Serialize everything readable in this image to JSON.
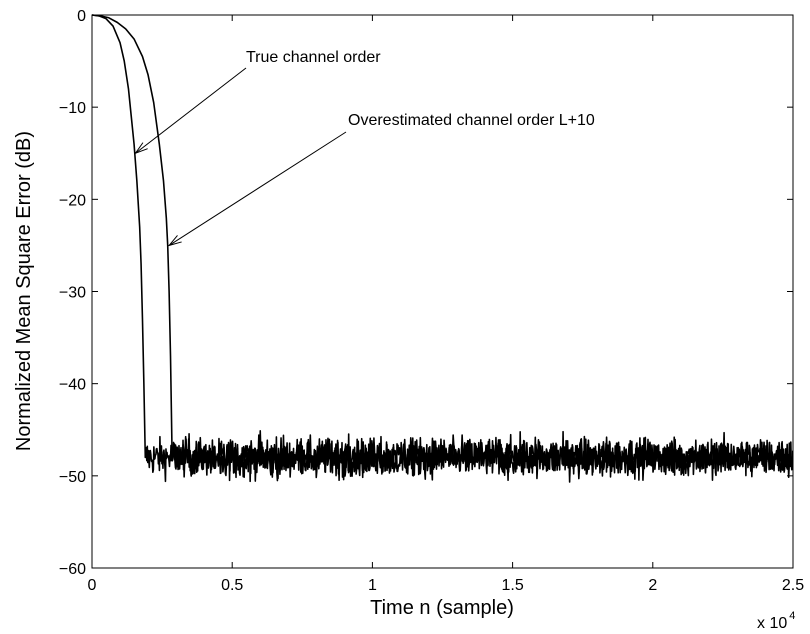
{
  "chart_data": {
    "type": "line",
    "title": "",
    "xlabel": "Time n (sample)",
    "ylabel": "Normalized Mean Square Error (dB)",
    "xlim": [
      0,
      25000
    ],
    "ylim": [
      -60,
      0
    ],
    "x_ticks": [
      0,
      5000,
      10000,
      15000,
      20000,
      25000
    ],
    "x_tick_labels": [
      "0",
      "0.5",
      "1",
      "1.5",
      "2",
      "2.5"
    ],
    "x_exponent_base": "x 10",
    "x_exponent_power": "4",
    "y_ticks": [
      0,
      -10,
      -20,
      -30,
      -40,
      -50,
      -60
    ],
    "y_tick_labels": [
      "0",
      "−10",
      "−20",
      "−30",
      "−40",
      "−50",
      "−60"
    ],
    "grid": false,
    "line_color": "#000000",
    "series": [
      {
        "x": [
          0,
          250,
          500,
          750,
          1000,
          1150,
          1300,
          1400,
          1500,
          1600,
          1700,
          1750,
          1800,
          1850,
          1900,
          25000
        ],
        "y": [
          0,
          -0.1,
          -0.4,
          -1.2,
          -3.0,
          -5.0,
          -8.0,
          -11.0,
          -14.0,
          -18.0,
          -23.0,
          -27.0,
          -33.0,
          -40.0,
          -48.0,
          -48.0
        ]
      },
      {
        "x": [
          0,
          300,
          600,
          900,
          1200,
          1500,
          1800,
          2000,
          2200,
          2400,
          2550,
          2650,
          2700,
          2750,
          2800,
          2850,
          25000
        ],
        "y": [
          0,
          -0.1,
          -0.3,
          -0.8,
          -1.5,
          -2.6,
          -4.5,
          -6.5,
          -9.5,
          -14.0,
          -18.0,
          -22.0,
          -25.0,
          -30.0,
          -37.0,
          -46.5,
          -48.0
        ]
      }
    ],
    "noise_floor_db": -48,
    "annotations": [
      {
        "text": "True channel order",
        "tip": [
          1550,
          -15
        ]
      },
      {
        "text": "Overestimated channel order L+10",
        "tip": [
          2750,
          -25
        ]
      }
    ]
  }
}
